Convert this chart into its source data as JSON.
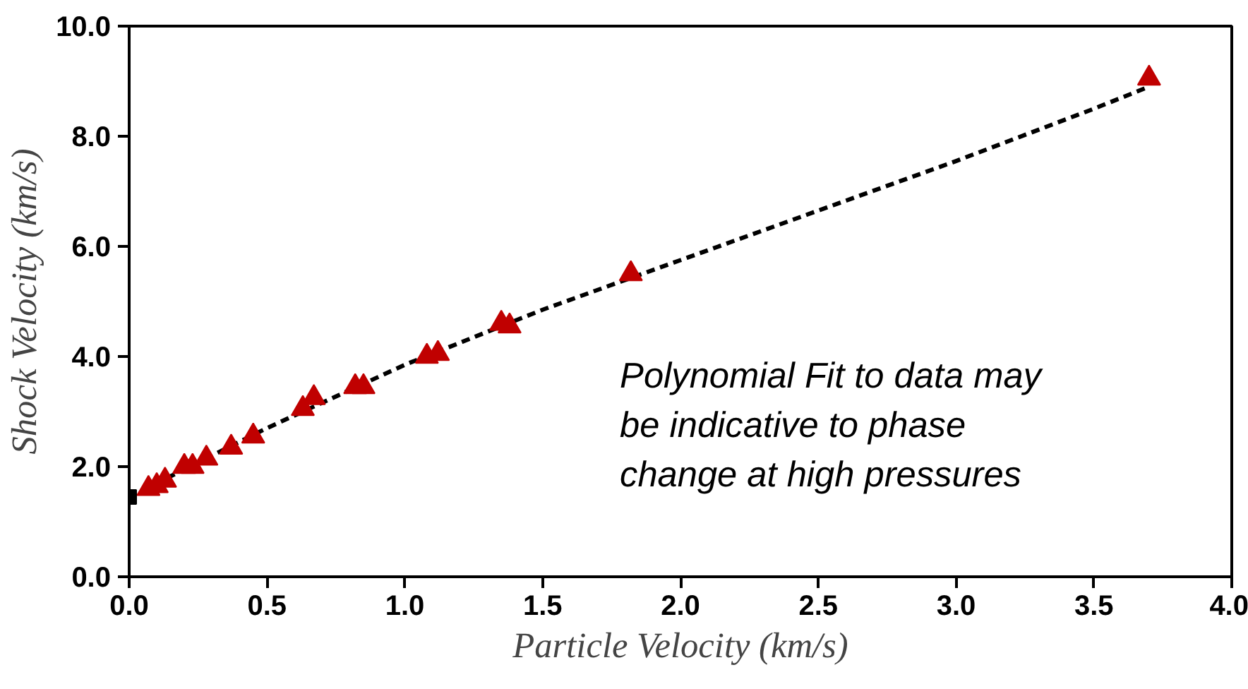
{
  "chart_data": {
    "type": "scatter",
    "xlabel": "Particle Velocity (km/s)",
    "ylabel": "Shock Velocity (km/s)",
    "xlim": [
      0,
      4
    ],
    "ylim": [
      0,
      10
    ],
    "xticks": [
      {
        "value": 0,
        "label": "0.0"
      },
      {
        "value": 0.5,
        "label": "0.5"
      },
      {
        "value": 1,
        "label": "1.0"
      },
      {
        "value": 1.5,
        "label": "1.5"
      },
      {
        "value": 2,
        "label": "2.0"
      },
      {
        "value": 2.5,
        "label": "2.5"
      },
      {
        "value": 3,
        "label": "3.0"
      },
      {
        "value": 3.5,
        "label": "3.5"
      },
      {
        "value": 4,
        "label": "4.0"
      }
    ],
    "yticks": [
      {
        "value": 0,
        "label": "0.0"
      },
      {
        "value": 2,
        "label": "2.0"
      },
      {
        "value": 4,
        "label": "4.0"
      },
      {
        "value": 6,
        "label": "6.0"
      },
      {
        "value": 8,
        "label": "8.0"
      },
      {
        "value": 10,
        "label": "10.0"
      }
    ],
    "grid": false,
    "annotations": [
      "Polynomial Fit to data may\nbe indicative to phase\nchange at high pressures"
    ],
    "series": [
      {
        "type": "line",
        "line_style": "dashed",
        "marker": "none",
        "color": "#000000",
        "x": [
          0,
          0.5,
          1,
          1.5,
          2,
          2.5,
          3,
          3.5,
          3.7
        ],
        "values": [
          1.45,
          2.7,
          3.85,
          4.85,
          5.75,
          6.65,
          7.55,
          8.5,
          8.9
        ]
      },
      {
        "marker": "triangle",
        "color": "#c00000",
        "x": [
          0.07,
          0.1,
          0.13,
          0.2,
          0.23,
          0.28,
          0.37,
          0.45,
          0.63,
          0.67,
          0.82,
          0.85,
          1.08,
          1.12,
          1.35,
          1.38,
          1.82,
          3.7
        ],
        "values": [
          1.6,
          1.65,
          1.75,
          2.0,
          2.0,
          2.15,
          2.35,
          2.55,
          3.05,
          3.25,
          3.45,
          3.45,
          4.0,
          4.05,
          4.6,
          4.55,
          5.5,
          9.05
        ]
      },
      {
        "type": "scatter",
        "marker": "square",
        "color": "#000000",
        "x": [
          0
        ],
        "values": [
          1.45
        ]
      }
    ]
  }
}
